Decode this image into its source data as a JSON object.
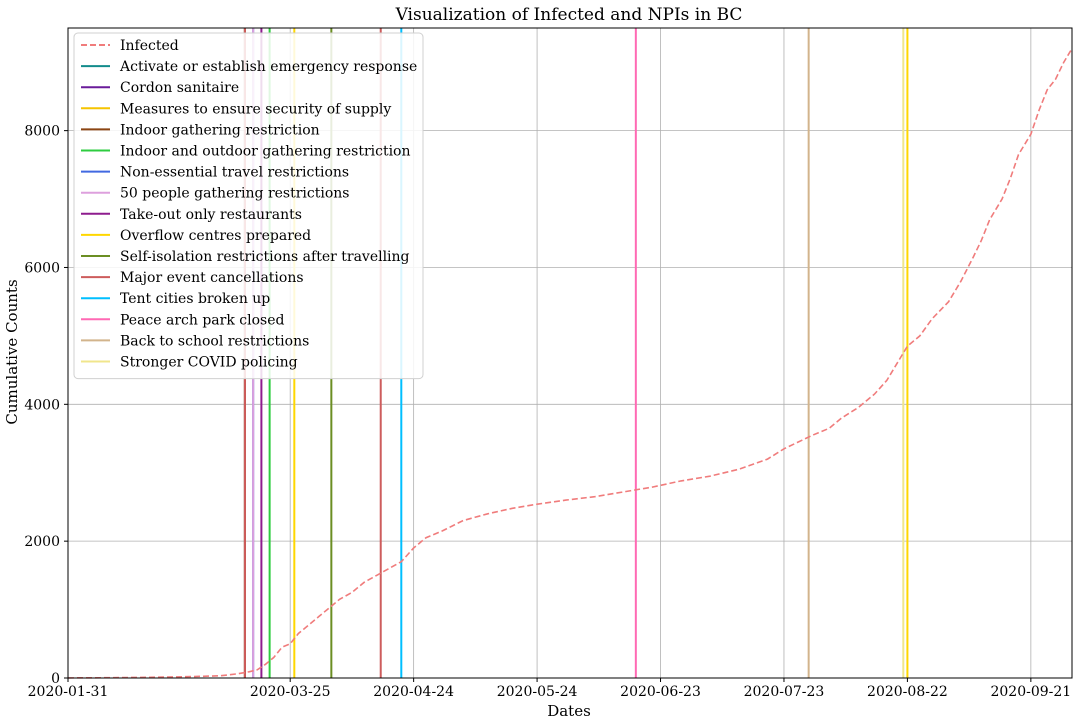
{
  "chart_data": {
    "type": "line",
    "title": "Visualization of Infected and NPIs in BC",
    "xlabel": "Dates",
    "ylabel": "Cumulative Counts",
    "x_start": "2020-01-31",
    "x_end": "2020-10-01",
    "xlim": [
      "2020-01-31",
      "2020-10-01"
    ],
    "ylim": [
      0,
      9500
    ],
    "x_ticks": [
      {
        "date": "2020-01-31",
        "label": "2020-01-31"
      },
      {
        "date": "2020-03-25",
        "label": "2020-03-25"
      },
      {
        "date": "2020-04-24",
        "label": "2020-04-24"
      },
      {
        "date": "2020-05-24",
        "label": "2020-05-24"
      },
      {
        "date": "2020-06-23",
        "label": "2020-06-23"
      },
      {
        "date": "2020-07-23",
        "label": "2020-07-23"
      },
      {
        "date": "2020-08-22",
        "label": "2020-08-22"
      },
      {
        "date": "2020-09-21",
        "label": "2020-09-21"
      }
    ],
    "y_ticks": [
      0,
      2000,
      4000,
      6000,
      8000
    ],
    "grid": true,
    "legend_position": "upper-left",
    "infected": {
      "name": "Infected",
      "color": "#f07c7c",
      "style": "dashed",
      "points": [
        [
          "2020-01-31",
          1
        ],
        [
          "2020-02-10",
          5
        ],
        [
          "2020-02-20",
          10
        ],
        [
          "2020-03-01",
          20
        ],
        [
          "2020-03-08",
          32
        ],
        [
          "2020-03-12",
          60
        ],
        [
          "2020-03-15",
          90
        ],
        [
          "2020-03-17",
          120
        ],
        [
          "2020-03-19",
          200
        ],
        [
          "2020-03-21",
          300
        ],
        [
          "2020-03-23",
          450
        ],
        [
          "2020-03-25",
          500
        ],
        [
          "2020-03-27",
          650
        ],
        [
          "2020-03-30",
          800
        ],
        [
          "2020-04-01",
          900
        ],
        [
          "2020-04-03",
          1000
        ],
        [
          "2020-04-06",
          1150
        ],
        [
          "2020-04-09",
          1250
        ],
        [
          "2020-04-12",
          1400
        ],
        [
          "2020-04-15",
          1500
        ],
        [
          "2020-04-18",
          1600
        ],
        [
          "2020-04-21",
          1700
        ],
        [
          "2020-04-24",
          1900
        ],
        [
          "2020-04-27",
          2050
        ],
        [
          "2020-05-01",
          2150
        ],
        [
          "2020-05-06",
          2300
        ],
        [
          "2020-05-12",
          2400
        ],
        [
          "2020-05-18",
          2480
        ],
        [
          "2020-05-24",
          2540
        ],
        [
          "2020-05-31",
          2600
        ],
        [
          "2020-06-07",
          2650
        ],
        [
          "2020-06-14",
          2720
        ],
        [
          "2020-06-21",
          2790
        ],
        [
          "2020-06-28",
          2880
        ],
        [
          "2020-07-05",
          2950
        ],
        [
          "2020-07-12",
          3050
        ],
        [
          "2020-07-19",
          3200
        ],
        [
          "2020-07-23",
          3350
        ],
        [
          "2020-07-30",
          3550
        ],
        [
          "2020-08-03",
          3650
        ],
        [
          "2020-08-06",
          3800
        ],
        [
          "2020-08-10",
          3950
        ],
        [
          "2020-08-14",
          4150
        ],
        [
          "2020-08-17",
          4350
        ],
        [
          "2020-08-20",
          4650
        ],
        [
          "2020-08-22",
          4850
        ],
        [
          "2020-08-25",
          5000
        ],
        [
          "2020-08-28",
          5250
        ],
        [
          "2020-09-01",
          5500
        ],
        [
          "2020-09-04",
          5800
        ],
        [
          "2020-09-07",
          6150
        ],
        [
          "2020-09-09",
          6400
        ],
        [
          "2020-09-11",
          6700
        ],
        [
          "2020-09-14",
          7000
        ],
        [
          "2020-09-16",
          7300
        ],
        [
          "2020-09-18",
          7650
        ],
        [
          "2020-09-21",
          7950
        ],
        [
          "2020-09-23",
          8300
        ],
        [
          "2020-09-25",
          8600
        ],
        [
          "2020-09-27",
          8750
        ],
        [
          "2020-09-29",
          9000
        ],
        [
          "2020-10-01",
          9200
        ]
      ]
    },
    "npis": [
      {
        "name": "Activate or establish emergency response",
        "color": "#128b8b",
        "date": "2020-03-14"
      },
      {
        "name": "Cordon sanitaire",
        "color": "#6a1b9a",
        "date": "2020-03-14"
      },
      {
        "name": "Measures to ensure security of supply",
        "color": "#f5c400",
        "date": "2020-03-14"
      },
      {
        "name": "Indoor gathering restriction",
        "color": "#8b4513",
        "date": "2020-03-14"
      },
      {
        "name": "Indoor and outdoor gathering restriction",
        "color": "#2ecc40",
        "date": "2020-03-20"
      },
      {
        "name": "Non-essential travel restrictions",
        "color": "#4169e1",
        "date": "2020-03-16"
      },
      {
        "name": "50 people gathering restrictions",
        "color": "#dda0dd",
        "date": "2020-03-16"
      },
      {
        "name": "Take-out only restaurants",
        "color": "#8e1c8e",
        "date": "2020-03-18"
      },
      {
        "name": "Overflow centres prepared",
        "color": "#ffd700",
        "date": "2020-03-26"
      },
      {
        "name": "Self-isolation restrictions after travelling",
        "color": "#6b8e23",
        "date": "2020-04-04"
      },
      {
        "name": "Major event cancellations",
        "color": "#cd5c5c",
        "date": "2020-04-16"
      },
      {
        "name": "Tent cities broken up",
        "color": "#00bfff",
        "date": "2020-04-21"
      },
      {
        "name": "Peace arch park closed",
        "color": "#ff69b4",
        "date": "2020-06-17"
      },
      {
        "name": "Back to school restrictions",
        "color": "#d2b48c",
        "date": "2020-07-29"
      },
      {
        "name": "Stronger COVID policing",
        "color": "#f0e68c",
        "date": "2020-08-21"
      }
    ],
    "extra_vertical_lines": [
      {
        "color": "#ffd700",
        "date": "2020-08-22"
      },
      {
        "color": "#cd5c5c",
        "date": "2020-03-14"
      }
    ]
  }
}
